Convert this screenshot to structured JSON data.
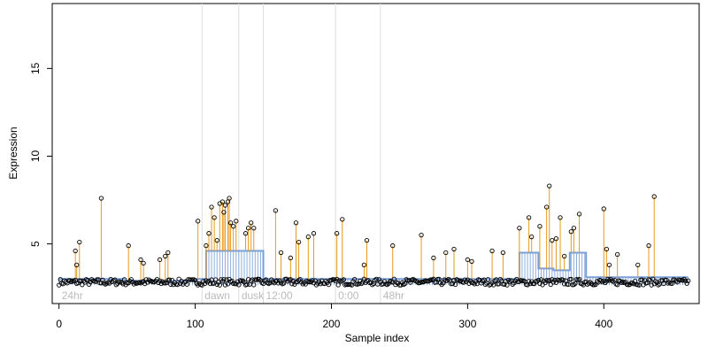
{
  "chart_data": {
    "type": "scatter",
    "title": "",
    "xlabel": "Sample index",
    "ylabel": "Expression",
    "xlim": [
      -5,
      470
    ],
    "ylim": [
      1.6,
      18.7
    ],
    "xticks": [
      0,
      100,
      200,
      300,
      400
    ],
    "yticks": [
      5,
      10,
      15
    ],
    "grid": false,
    "legend": "none",
    "colors": {
      "points": "#000000",
      "spikes": "#e69a1e",
      "fit": "#7b9fd8",
      "annotation_lines": "#dddddd",
      "annotation_text": "#bbbbbb"
    },
    "annotations": [
      {
        "label": "24hr",
        "x": 0
      },
      {
        "label": "dawn",
        "x": 105
      },
      {
        "label": "dusk",
        "x": 132
      },
      {
        "label": "12:00",
        "x": 150
      },
      {
        "label": "0:00",
        "x": 203
      },
      {
        "label": "48hr",
        "x": 236
      }
    ],
    "vlines": [
      105,
      132,
      150,
      203,
      236
    ],
    "baseline_segments": [
      {
        "x": [
          0,
          48
        ],
        "y": 3.0
      },
      {
        "x": [
          48,
          101
        ],
        "y": 2.9
      },
      {
        "x": [
          101,
          108
        ],
        "y": 3.0
      },
      {
        "x": [
          108,
          150
        ],
        "y": 4.6
      },
      {
        "x": [
          150,
          265
        ],
        "y": 3.0
      },
      {
        "x": [
          265,
          338
        ],
        "y": 3.0
      },
      {
        "x": [
          338,
          352
        ],
        "y": 4.5
      },
      {
        "x": [
          352,
          363
        ],
        "y": 3.6
      },
      {
        "x": [
          363,
          375
        ],
        "y": 3.5
      },
      {
        "x": [
          375,
          387
        ],
        "y": 4.5
      },
      {
        "x": [
          387,
          462
        ],
        "y": 3.1
      }
    ],
    "spikes": [
      {
        "x": 12,
        "y": 4.6
      },
      {
        "x": 13,
        "y": 3.8
      },
      {
        "x": 15,
        "y": 5.1
      },
      {
        "x": 31,
        "y": 7.6
      },
      {
        "x": 51,
        "y": 4.9
      },
      {
        "x": 60,
        "y": 4.1
      },
      {
        "x": 62,
        "y": 3.9
      },
      {
        "x": 74,
        "y": 4.1
      },
      {
        "x": 78,
        "y": 4.3
      },
      {
        "x": 80,
        "y": 4.5
      },
      {
        "x": 102,
        "y": 6.3
      },
      {
        "x": 108,
        "y": 4.9
      },
      {
        "x": 110,
        "y": 5.6
      },
      {
        "x": 112,
        "y": 7.1
      },
      {
        "x": 114,
        "y": 6.5
      },
      {
        "x": 116,
        "y": 5.2
      },
      {
        "x": 118,
        "y": 7.3
      },
      {
        "x": 120,
        "y": 7.4
      },
      {
        "x": 121,
        "y": 6.8
      },
      {
        "x": 122,
        "y": 7.2
      },
      {
        "x": 124,
        "y": 7.4
      },
      {
        "x": 125,
        "y": 7.6
      },
      {
        "x": 126,
        "y": 6.2
      },
      {
        "x": 128,
        "y": 6.0
      },
      {
        "x": 130,
        "y": 6.3
      },
      {
        "x": 137,
        "y": 5.6
      },
      {
        "x": 139,
        "y": 5.9
      },
      {
        "x": 141,
        "y": 6.2
      },
      {
        "x": 143,
        "y": 5.9
      },
      {
        "x": 159,
        "y": 6.9
      },
      {
        "x": 163,
        "y": 4.5
      },
      {
        "x": 170,
        "y": 4.2
      },
      {
        "x": 174,
        "y": 6.2
      },
      {
        "x": 176,
        "y": 5.1
      },
      {
        "x": 183,
        "y": 5.4
      },
      {
        "x": 187,
        "y": 5.6
      },
      {
        "x": 204,
        "y": 5.6
      },
      {
        "x": 208,
        "y": 6.4
      },
      {
        "x": 224,
        "y": 3.8
      },
      {
        "x": 226,
        "y": 5.2
      },
      {
        "x": 245,
        "y": 4.9
      },
      {
        "x": 266,
        "y": 5.5
      },
      {
        "x": 275,
        "y": 4.2
      },
      {
        "x": 284,
        "y": 4.5
      },
      {
        "x": 290,
        "y": 4.7
      },
      {
        "x": 300,
        "y": 4.1
      },
      {
        "x": 303,
        "y": 4.0
      },
      {
        "x": 318,
        "y": 4.6
      },
      {
        "x": 326,
        "y": 4.5
      },
      {
        "x": 338,
        "y": 5.9
      },
      {
        "x": 345,
        "y": 6.5
      },
      {
        "x": 347,
        "y": 5.4
      },
      {
        "x": 353,
        "y": 6.0
      },
      {
        "x": 358,
        "y": 7.1
      },
      {
        "x": 360,
        "y": 8.3
      },
      {
        "x": 362,
        "y": 5.2
      },
      {
        "x": 365,
        "y": 5.3
      },
      {
        "x": 368,
        "y": 6.5
      },
      {
        "x": 371,
        "y": 4.3
      },
      {
        "x": 376,
        "y": 5.7
      },
      {
        "x": 378,
        "y": 5.9
      },
      {
        "x": 382,
        "y": 6.7
      },
      {
        "x": 400,
        "y": 7.0
      },
      {
        "x": 402,
        "y": 4.7
      },
      {
        "x": 404,
        "y": 3.8
      },
      {
        "x": 410,
        "y": 4.4
      },
      {
        "x": 425,
        "y": 3.8
      },
      {
        "x": 433,
        "y": 4.9
      },
      {
        "x": 437,
        "y": 7.7
      }
    ]
  }
}
